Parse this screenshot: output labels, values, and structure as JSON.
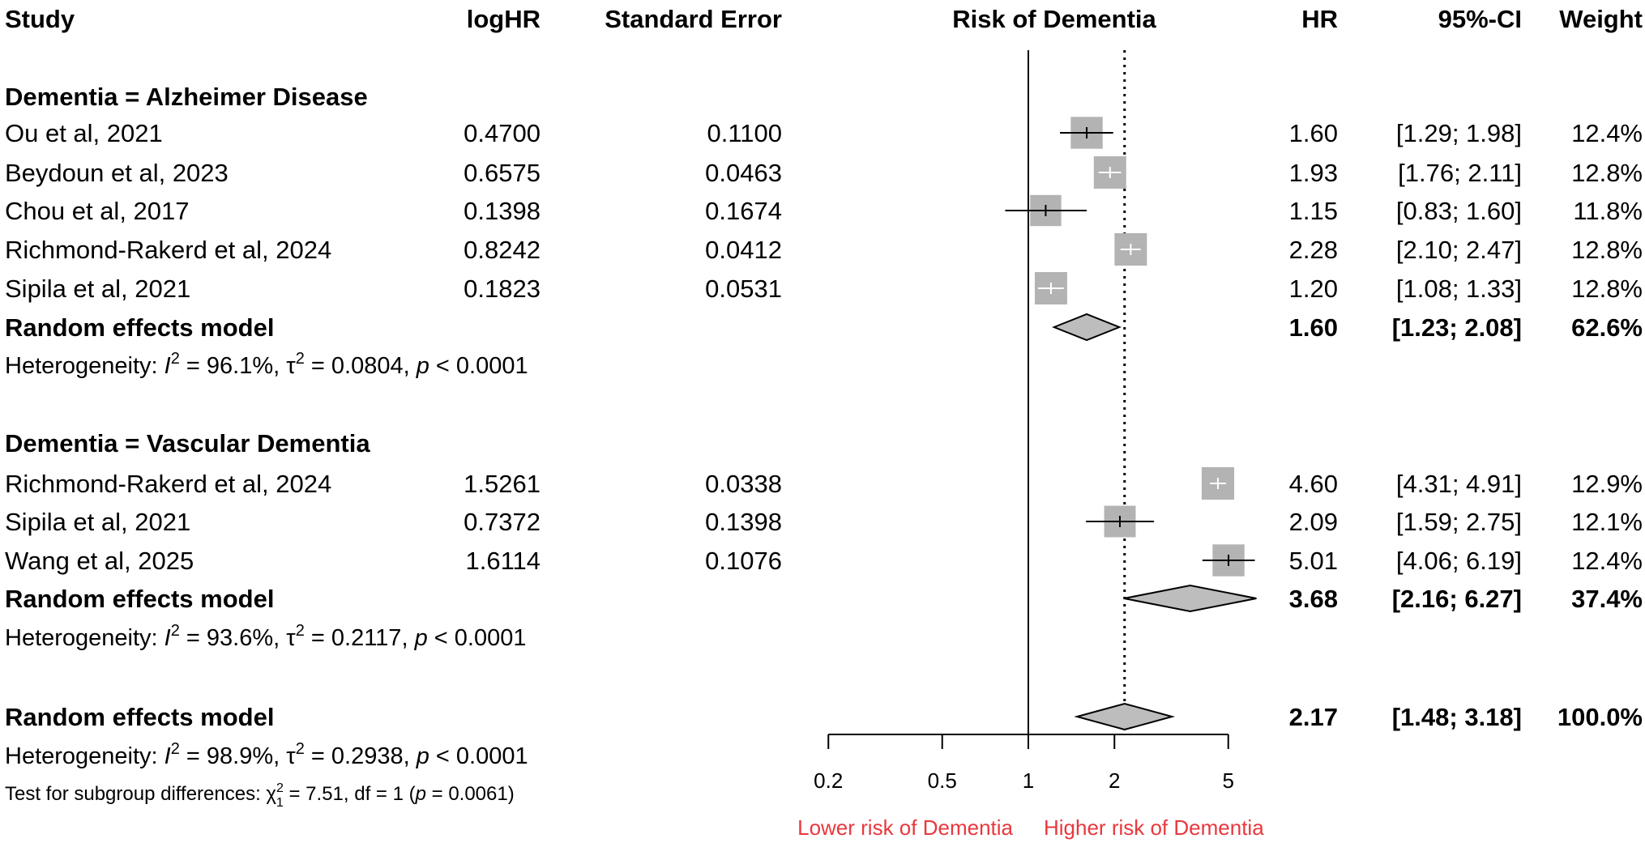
{
  "headers": {
    "study": "Study",
    "loghr": "logHR",
    "se": "Standard Error",
    "plot": "Risk of Dementia",
    "hr": "HR",
    "ci": "95%-CI",
    "weight": "Weight"
  },
  "colors": {
    "square": "#b3b3b3",
    "diamond": "#bdbdbd",
    "label_red": "#e8383d"
  },
  "chart_data": {
    "type": "forest",
    "scale": "log",
    "xlim": [
      0.2,
      5
    ],
    "ticks": [
      "0.2",
      "0.5",
      "1",
      "2",
      "5"
    ],
    "tick_values": [
      0.2,
      0.5,
      1,
      2,
      5
    ],
    "null_line": 1,
    "overall_line": 2.17,
    "label_left": "Lower risk of Dementia",
    "label_right": "Higher risk of Dementia",
    "groups": [
      {
        "heading": "Dementia = Alzheimer Disease",
        "studies": [
          {
            "study": "Ou et al, 2021",
            "loghr": "0.4700",
            "se": "0.1100",
            "hr": 1.6,
            "lo": 1.29,
            "hi": 1.98,
            "hr_text": "1.60",
            "ci_text": "[1.29; 1.98]",
            "weight": "12.4%"
          },
          {
            "study": "Beydoun et al, 2023",
            "loghr": "0.6575",
            "se": "0.0463",
            "hr": 1.93,
            "lo": 1.76,
            "hi": 2.11,
            "hr_text": "1.93",
            "ci_text": "[1.76; 2.11]",
            "weight": "12.8%"
          },
          {
            "study": "Chou et al, 2017",
            "loghr": "0.1398",
            "se": "0.1674",
            "hr": 1.15,
            "lo": 0.83,
            "hi": 1.6,
            "hr_text": "1.15",
            "ci_text": "[0.83; 1.60]",
            "weight": "11.8%"
          },
          {
            "study": "Richmond-Rakerd et al, 2024",
            "loghr": "0.8242",
            "se": "0.0412",
            "hr": 2.28,
            "lo": 2.1,
            "hi": 2.47,
            "hr_text": "2.28",
            "ci_text": "[2.10; 2.47]",
            "weight": "12.8%"
          },
          {
            "study": "Sipila et al, 2021",
            "loghr": "0.1823",
            "se": "0.0531",
            "hr": 1.2,
            "lo": 1.08,
            "hi": 1.33,
            "hr_text": "1.20",
            "ci_text": "[1.08; 1.33]",
            "weight": "12.8%"
          }
        ],
        "model": {
          "label": "Random effects model",
          "hr": 1.6,
          "lo": 1.23,
          "hi": 2.08,
          "hr_text": "1.60",
          "ci_text": "[1.23; 2.08]",
          "weight": "62.6%"
        },
        "het": {
          "prefix": "Heterogeneity: ",
          "i2": "96.1%",
          "tau2": "0.0804",
          "p": "< 0.0001"
        }
      },
      {
        "heading": "Dementia = Vascular Dementia",
        "studies": [
          {
            "study": "Richmond-Rakerd et al, 2024",
            "loghr": "1.5261",
            "se": "0.0338",
            "hr": 4.6,
            "lo": 4.31,
            "hi": 4.91,
            "hr_text": "4.60",
            "ci_text": "[4.31; 4.91]",
            "weight": "12.9%"
          },
          {
            "study": "Sipila et al, 2021",
            "loghr": "0.7372",
            "se": "0.1398",
            "hr": 2.09,
            "lo": 1.59,
            "hi": 2.75,
            "hr_text": "2.09",
            "ci_text": "[1.59; 2.75]",
            "weight": "12.1%"
          },
          {
            "study": "Wang et al, 2025",
            "loghr": "1.6114",
            "se": "0.1076",
            "hr": 5.01,
            "lo": 4.06,
            "hi": 6.19,
            "hr_text": "5.01",
            "ci_text": "[4.06; 6.19]",
            "weight": "12.4%"
          }
        ],
        "model": {
          "label": "Random effects model",
          "hr": 3.68,
          "lo": 2.16,
          "hi": 6.27,
          "hr_text": "3.68",
          "ci_text": "[2.16; 6.27]",
          "weight": "37.4%"
        },
        "het": {
          "prefix": "Heterogeneity: ",
          "i2": "93.6%",
          "tau2": "0.2117",
          "p": "< 0.0001"
        }
      }
    ],
    "overall": {
      "model": {
        "label": "Random effects model",
        "hr": 2.17,
        "lo": 1.48,
        "hi": 3.18,
        "hr_text": "2.17",
        "ci_text": "[1.48; 3.18]",
        "weight": "100.0%"
      },
      "het": {
        "prefix": "Heterogeneity: ",
        "i2": "98.9%",
        "tau2": "0.2938",
        "p": "< 0.0001"
      },
      "subgroup_test": {
        "prefix": "Test for subgroup differences: ",
        "chi2": "7.51",
        "df_text": ", df = 1 (",
        "p": "0.0061",
        "suffix": ")"
      }
    }
  }
}
